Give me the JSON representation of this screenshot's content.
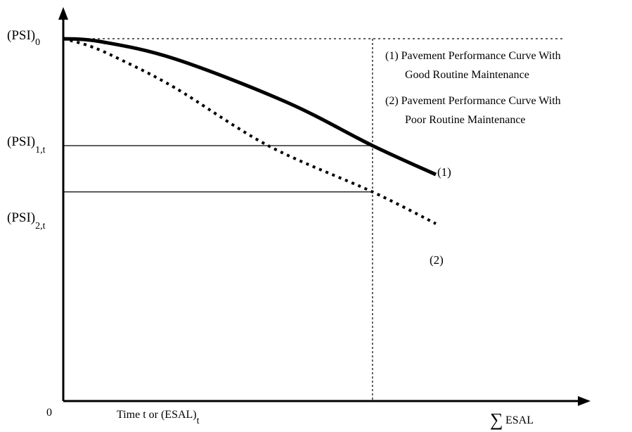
{
  "chart_data": {
    "type": "line",
    "title": "",
    "origin_label": "0",
    "x_axis": {
      "label_main": "Time t or (ESAL)",
      "label_sub": "t",
      "end_symbol": "∑",
      "end_label": "ESAL"
    },
    "y_axis": {
      "ticks": [
        {
          "main": "(PSI)",
          "sub": "0",
          "value": 1.0
        },
        {
          "main": "(PSI)",
          "sub": "1,t",
          "value": 0.63
        },
        {
          "main": "(PSI)",
          "sub": "2,t",
          "value": 0.47
        }
      ]
    },
    "xlim": [
      0,
      1
    ],
    "ylim": [
      -0.35,
      1.2
    ],
    "reference_x": 0.83,
    "series": [
      {
        "name": "(1) Pavement Performance Curve With",
        "name_line2": "Good Routine Maintenance",
        "tag": "(1)",
        "style": "solid",
        "points": [
          [
            0,
            1.0
          ],
          [
            0.1,
            0.99
          ],
          [
            0.3,
            0.93
          ],
          [
            0.6,
            0.78
          ],
          [
            0.83,
            0.63
          ],
          [
            1.0,
            0.53
          ]
        ]
      },
      {
        "name": "(2) Pavement Performance Curve With",
        "name_line2": "Poor Routine Maintenance",
        "tag": "(2)",
        "style": "dotted",
        "points": [
          [
            0,
            1.0
          ],
          [
            0.07,
            0.975
          ],
          [
            0.15,
            0.93
          ],
          [
            0.3,
            0.83
          ],
          [
            0.55,
            0.63
          ],
          [
            0.83,
            0.47
          ],
          [
            1.0,
            0.36
          ]
        ]
      }
    ],
    "grid": false,
    "legend_position": "top-right"
  }
}
